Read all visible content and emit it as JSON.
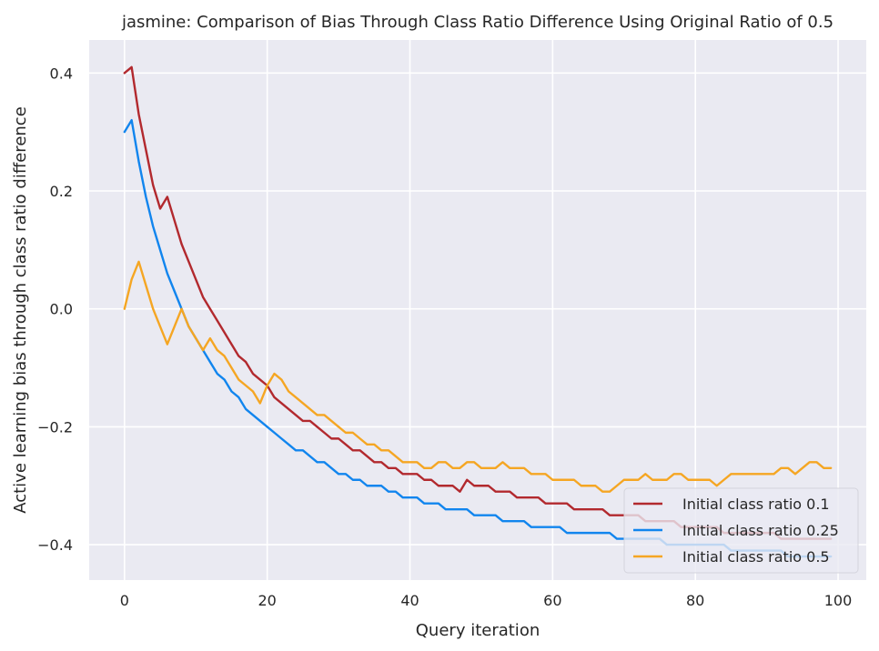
{
  "chart_data": {
    "type": "line",
    "title": "jasmine: Comparison of Bias Through Class Ratio Difference Using Original Ratio of 0.5",
    "xlabel": "Query iteration",
    "ylabel": "Active learning bias through class ratio difference",
    "xlim": [
      -4.95,
      103.95
    ],
    "ylim": [
      -0.46,
      0.456
    ],
    "xticks": [
      0,
      20,
      40,
      60,
      80,
      100
    ],
    "yticks": [
      -0.4,
      -0.2,
      0.0,
      0.2,
      0.4
    ],
    "xtick_labels": [
      "0",
      "20",
      "40",
      "60",
      "80",
      "100"
    ],
    "ytick_labels": [
      "−0.4",
      "−0.2",
      "0.0",
      "0.2",
      "0.4"
    ],
    "grid": true,
    "legend_position": "bottom-right",
    "background": "#eaeaf2",
    "series": [
      {
        "name": "Initial class ratio 0.1",
        "color": "#b2292e",
        "y": [
          0.4,
          0.41,
          0.33,
          0.27,
          0.21,
          0.17,
          0.19,
          0.15,
          0.11,
          0.08,
          0.05,
          0.02,
          0.0,
          -0.02,
          -0.04,
          -0.06,
          -0.08,
          -0.09,
          -0.11,
          -0.12,
          -0.13,
          -0.15,
          -0.16,
          -0.17,
          -0.18,
          -0.19,
          -0.19,
          -0.2,
          -0.21,
          -0.22,
          -0.22,
          -0.23,
          -0.24,
          -0.24,
          -0.25,
          -0.26,
          -0.26,
          -0.27,
          -0.27,
          -0.28,
          -0.28,
          -0.28,
          -0.29,
          -0.29,
          -0.3,
          -0.3,
          -0.3,
          -0.31,
          -0.29,
          -0.3,
          -0.3,
          -0.3,
          -0.31,
          -0.31,
          -0.31,
          -0.32,
          -0.32,
          -0.32,
          -0.32,
          -0.33,
          -0.33,
          -0.33,
          -0.33,
          -0.34,
          -0.34,
          -0.34,
          -0.34,
          -0.34,
          -0.35,
          -0.35,
          -0.35,
          -0.35,
          -0.35,
          -0.36,
          -0.36,
          -0.36,
          -0.36,
          -0.36,
          -0.37,
          -0.37,
          -0.37,
          -0.37,
          -0.37,
          -0.37,
          -0.38,
          -0.38,
          -0.38,
          -0.38,
          -0.38,
          -0.38,
          -0.38,
          -0.38,
          -0.39,
          -0.39,
          -0.39,
          -0.39,
          -0.39,
          -0.39,
          -0.39,
          -0.39
        ]
      },
      {
        "name": "Initial class ratio 0.25",
        "color": "#1185ee",
        "y": [
          0.3,
          0.32,
          0.25,
          0.19,
          0.14,
          0.1,
          0.06,
          0.03,
          0.0,
          -0.03,
          -0.05,
          -0.07,
          -0.09,
          -0.11,
          -0.12,
          -0.14,
          -0.15,
          -0.17,
          -0.18,
          -0.19,
          -0.2,
          -0.21,
          -0.22,
          -0.23,
          -0.24,
          -0.24,
          -0.25,
          -0.26,
          -0.26,
          -0.27,
          -0.28,
          -0.28,
          -0.29,
          -0.29,
          -0.3,
          -0.3,
          -0.3,
          -0.31,
          -0.31,
          -0.32,
          -0.32,
          -0.32,
          -0.33,
          -0.33,
          -0.33,
          -0.34,
          -0.34,
          -0.34,
          -0.34,
          -0.35,
          -0.35,
          -0.35,
          -0.35,
          -0.36,
          -0.36,
          -0.36,
          -0.36,
          -0.37,
          -0.37,
          -0.37,
          -0.37,
          -0.37,
          -0.38,
          -0.38,
          -0.38,
          -0.38,
          -0.38,
          -0.38,
          -0.38,
          -0.39,
          -0.39,
          -0.39,
          -0.39,
          -0.39,
          -0.39,
          -0.39,
          -0.4,
          -0.4,
          -0.4,
          -0.4,
          -0.4,
          -0.4,
          -0.4,
          -0.4,
          -0.4,
          -0.41,
          -0.41,
          -0.41,
          -0.41,
          -0.41,
          -0.41,
          -0.41,
          -0.41,
          -0.42,
          -0.42,
          -0.42,
          -0.42,
          -0.42,
          -0.42,
          -0.42
        ]
      },
      {
        "name": "Initial class ratio 0.5",
        "color": "#f5a623",
        "y": [
          0.0,
          0.05,
          0.08,
          0.04,
          0.0,
          -0.03,
          -0.06,
          -0.03,
          0.0,
          -0.03,
          -0.05,
          -0.07,
          -0.05,
          -0.07,
          -0.08,
          -0.1,
          -0.12,
          -0.13,
          -0.14,
          -0.16,
          -0.13,
          -0.11,
          -0.12,
          -0.14,
          -0.15,
          -0.16,
          -0.17,
          -0.18,
          -0.18,
          -0.19,
          -0.2,
          -0.21,
          -0.21,
          -0.22,
          -0.23,
          -0.23,
          -0.24,
          -0.24,
          -0.25,
          -0.26,
          -0.26,
          -0.26,
          -0.27,
          -0.27,
          -0.26,
          -0.26,
          -0.27,
          -0.27,
          -0.26,
          -0.26,
          -0.27,
          -0.27,
          -0.27,
          -0.26,
          -0.27,
          -0.27,
          -0.27,
          -0.28,
          -0.28,
          -0.28,
          -0.29,
          -0.29,
          -0.29,
          -0.29,
          -0.3,
          -0.3,
          -0.3,
          -0.31,
          -0.31,
          -0.3,
          -0.29,
          -0.29,
          -0.29,
          -0.28,
          -0.29,
          -0.29,
          -0.29,
          -0.28,
          -0.28,
          -0.29,
          -0.29,
          -0.29,
          -0.29,
          -0.3,
          -0.29,
          -0.28,
          -0.28,
          -0.28,
          -0.28,
          -0.28,
          -0.28,
          -0.28,
          -0.27,
          -0.27,
          -0.28,
          -0.27,
          -0.26,
          -0.26,
          -0.27,
          -0.27
        ]
      }
    ]
  }
}
